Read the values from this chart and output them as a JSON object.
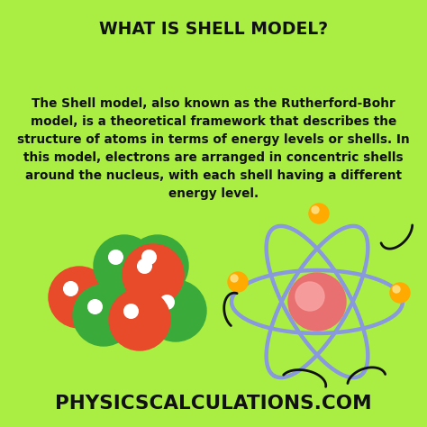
{
  "background_color": "#AAEE44",
  "title": "WHAT IS SHELL MODEL?",
  "title_fontsize": 13.5,
  "title_fontweight": "bold",
  "body_text": "The Shell model, also known as the Rutherford-Bohr\nmodel, is a theoretical framework that describes the\nstructure of atoms in terms of energy levels or shells. In\nthis model, electrons are arranged in concentric shells\naround the nucleus, with each shell having a different\nenergy level.",
  "body_fontsize": 9.8,
  "footer_text": "PHYSICSCALCULATIONS.COM",
  "footer_fontsize": 15.5,
  "footer_fontweight": "bold",
  "red_color": "#E84B2A",
  "green_color": "#3AAA3A",
  "white_color": "#FFFFFF",
  "orbit_color": "#8899DD",
  "nucleus_outer_color": "#E87070",
  "nucleus_inner_color": "#F8A0A0",
  "electron_color": "#FFAA00",
  "dark_color": "#111111"
}
